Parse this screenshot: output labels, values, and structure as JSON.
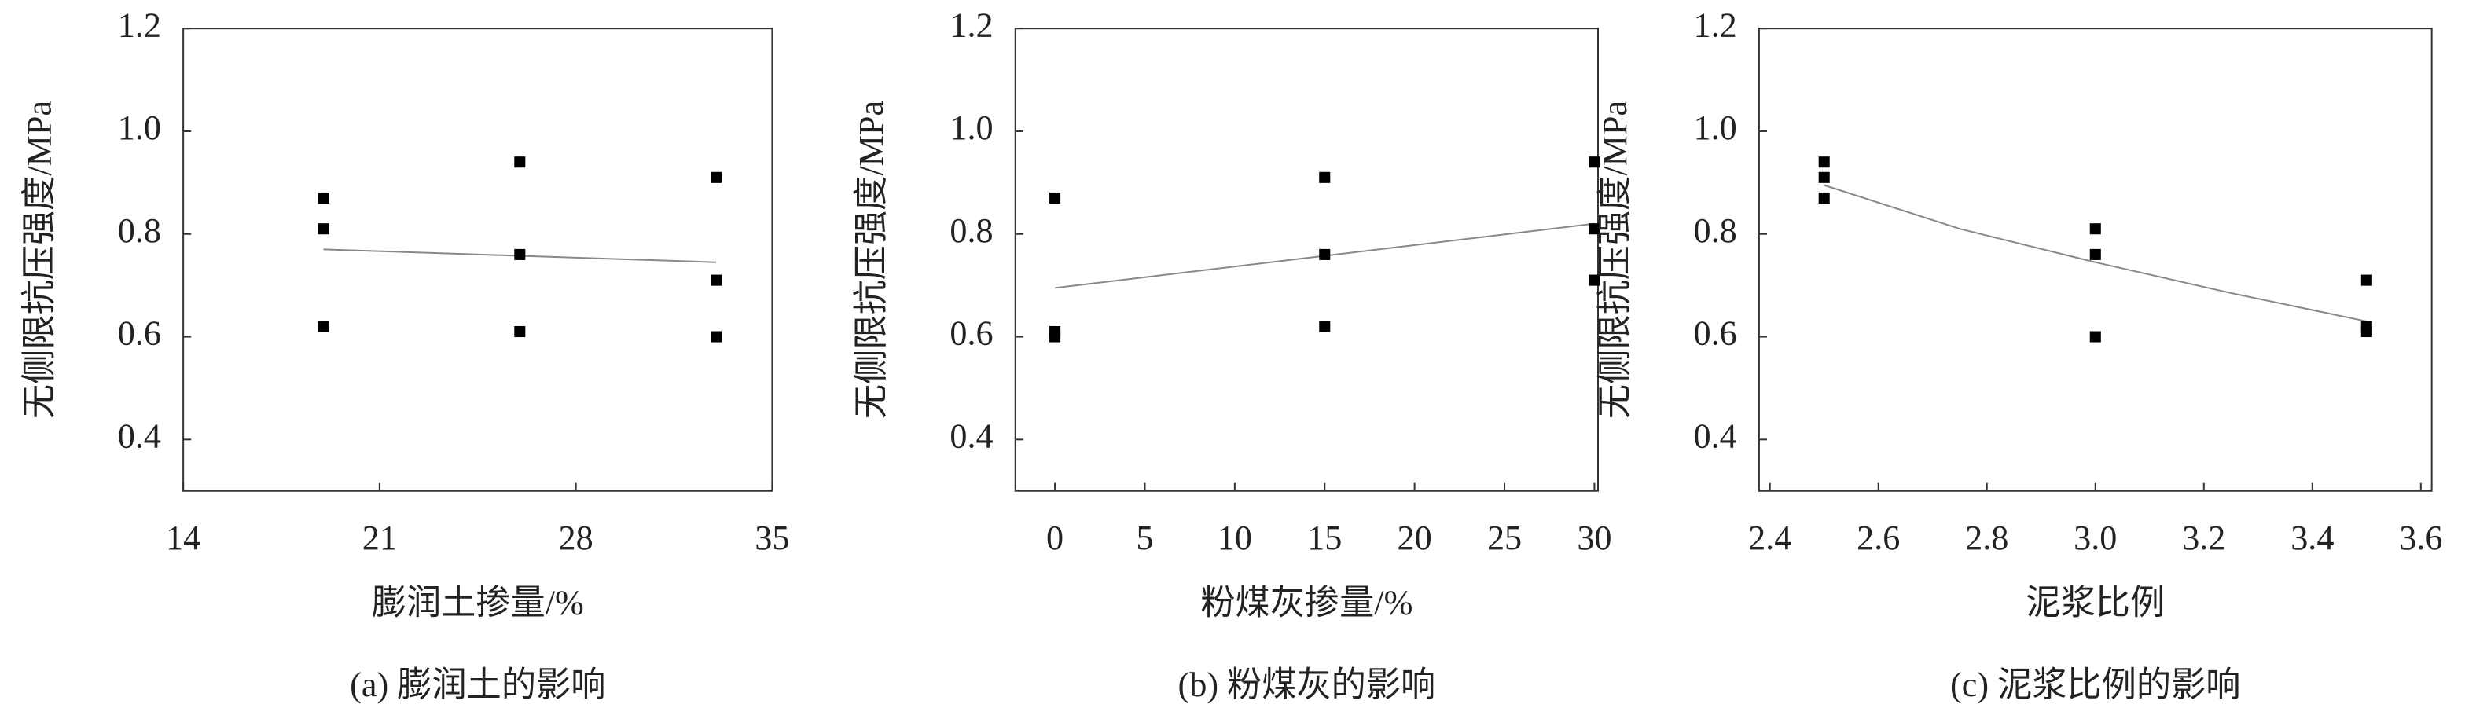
{
  "chart_data": [
    {
      "type": "scatter",
      "x_label": "膨润土掺量/%",
      "y_label": "无侧限抗压强度/MPa",
      "caption": "(a) 膨润土的影响",
      "x": [
        19,
        19,
        19,
        26,
        26,
        26,
        33,
        33,
        33
      ],
      "series": [
        {
          "color": "#000000",
          "values": [
            0.87,
            0.81,
            0.62,
            0.94,
            0.76,
            0.61,
            0.91,
            0.71,
            0.6
          ]
        }
      ],
      "trendline": {
        "color": "#888888",
        "x": [
          19,
          33
        ],
        "values": [
          0.77,
          0.745
        ]
      },
      "xlim": [
        14,
        35
      ],
      "ylim": [
        0.3,
        1.2
      ],
      "xticks": [
        14,
        21,
        28,
        35
      ],
      "yticks": [
        0.4,
        0.6,
        0.8,
        {
          "value": 1,
          "label": "1.0"
        },
        1.2
      ]
    },
    {
      "type": "scatter",
      "x_label": "粉煤灰掺量/%",
      "y_label": "无侧限抗压强度/MPa",
      "caption": "(b) 粉煤灰的影响",
      "x": [
        0,
        0,
        0,
        15,
        15,
        15,
        30,
        30,
        30
      ],
      "series": [
        {
          "color": "#000000",
          "values": [
            0.87,
            0.61,
            0.6,
            0.91,
            0.76,
            0.62,
            0.94,
            0.81,
            0.71
          ]
        }
      ],
      "trendline": {
        "color": "#888888",
        "x": [
          0,
          30
        ],
        "values": [
          0.695,
          0.82
        ]
      },
      "xlim": [
        -2.2,
        30.2
      ],
      "ylim": [
        0.3,
        1.2
      ],
      "xticks": [
        0,
        5,
        10,
        15,
        20,
        25,
        30
      ],
      "yticks": [
        0.4,
        0.6,
        0.8,
        {
          "value": 1,
          "label": "1.0"
        },
        1.2
      ]
    },
    {
      "type": "scatter",
      "x_label": "泥浆比例",
      "y_label": "无侧限抗压强度/MPa",
      "caption": "(c) 泥浆比例的影响",
      "x": [
        2.5,
        2.5,
        2.5,
        3,
        3,
        3,
        3.5,
        3.5,
        3.5
      ],
      "series": [
        {
          "color": "#000000",
          "values": [
            0.94,
            0.91,
            0.87,
            0.81,
            0.76,
            0.6,
            0.71,
            0.62,
            0.61
          ]
        }
      ],
      "trendline": {
        "color": "#888888",
        "x": [
          2.5,
          2.75,
          3,
          3.25,
          3.5
        ],
        "values": [
          0.895,
          0.81,
          0.745,
          0.685,
          0.63
        ]
      },
      "xlim": [
        2.38,
        3.62
      ],
      "ylim": [
        0.3,
        1.2
      ],
      "xticks": [
        2.4,
        2.6,
        2.8,
        {
          "value": 3,
          "label": "3.0"
        },
        3.2,
        3.4,
        3.6
      ],
      "yticks": [
        0.4,
        0.6,
        0.8,
        {
          "value": 1,
          "label": "1.0"
        },
        1.2
      ]
    }
  ]
}
